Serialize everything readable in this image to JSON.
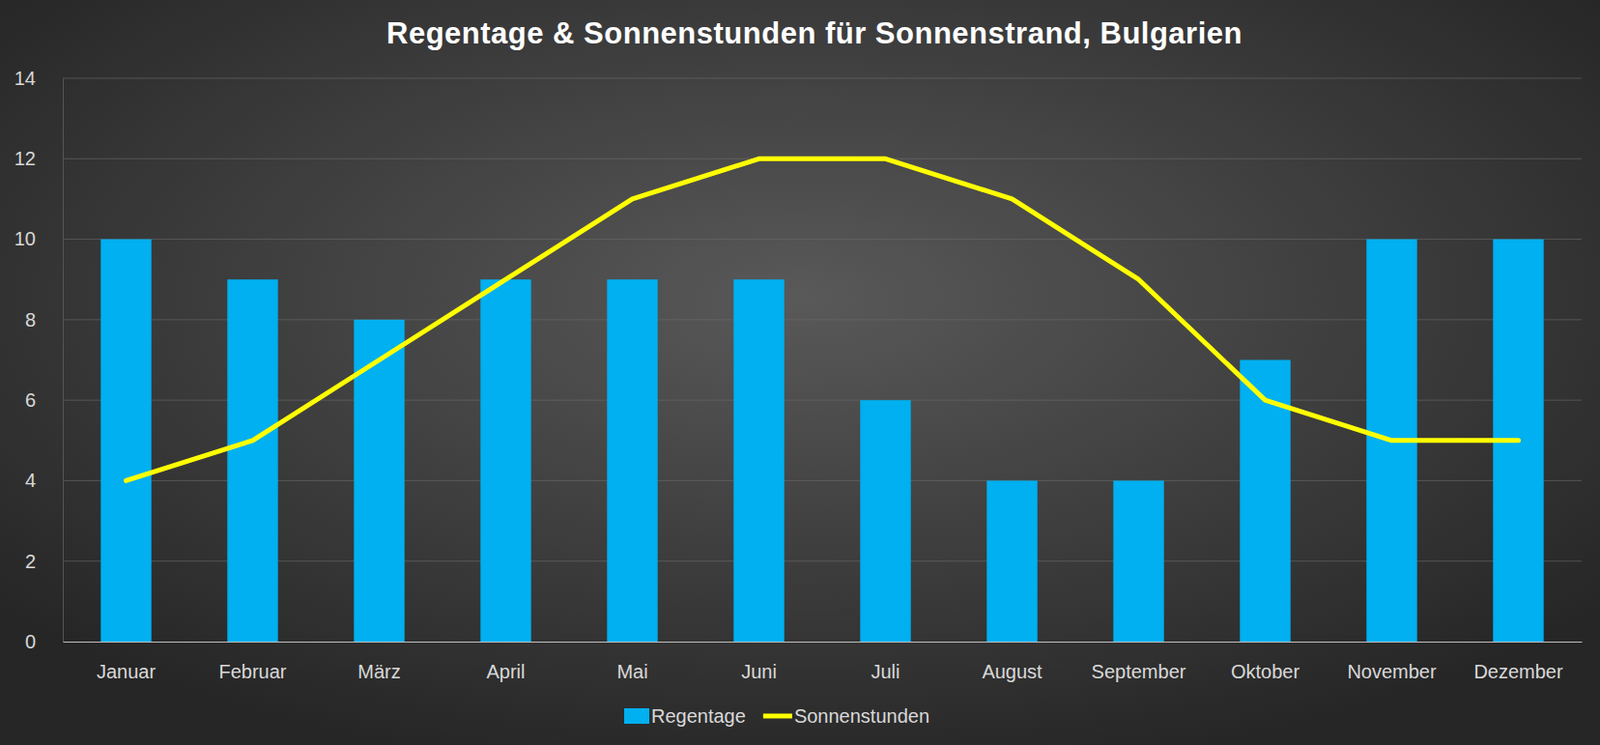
{
  "chart_data": {
    "type": "bar",
    "title": "Regentage & Sonnenstunden für Sonnenstrand, Bulgarien",
    "categories": [
      "Januar",
      "Februar",
      "März",
      "April",
      "Mai",
      "Juni",
      "Juli",
      "August",
      "September",
      "Oktober",
      "November",
      "Dezember"
    ],
    "series": [
      {
        "name": "Regentage",
        "type": "bar",
        "color": "#00b0f0",
        "values": [
          10,
          9,
          8,
          9,
          9,
          9,
          6,
          4,
          4,
          7,
          10,
          10
        ]
      },
      {
        "name": "Sonnenstunden",
        "type": "line",
        "color": "#ffff00",
        "values": [
          4,
          5,
          7,
          9,
          11,
          12,
          12,
          11,
          9,
          6,
          5,
          5
        ]
      }
    ],
    "ylim": [
      0,
      14
    ],
    "yticks": [
      0,
      2,
      4,
      6,
      8,
      10,
      12,
      14
    ],
    "grid": true,
    "legend": "bottom"
  }
}
